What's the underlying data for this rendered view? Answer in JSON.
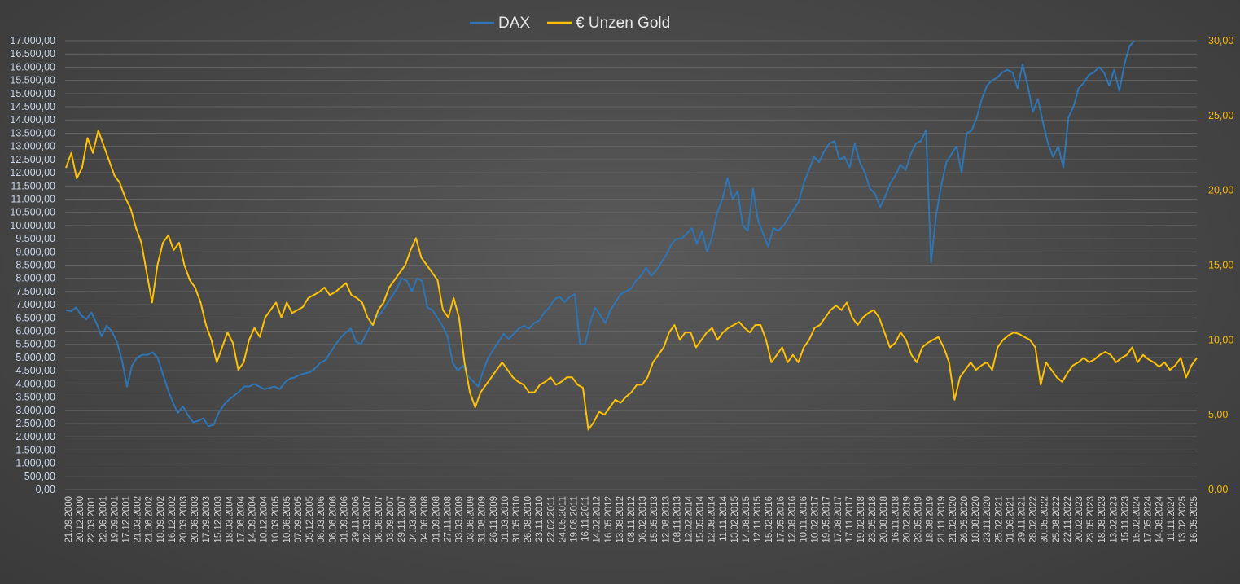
{
  "chart_data": {
    "type": "line",
    "title": "",
    "legend_position": "top-center",
    "grid": true,
    "colors": {
      "dax": "#2e75b6",
      "gold": "#ffc000",
      "grid": "#636363"
    },
    "y_left": {
      "min": 0,
      "max": 17000,
      "step": 500,
      "ticks": [
        "0,00",
        "500,00",
        "1.000,00",
        "1.500,00",
        "2.000,00",
        "2.500,00",
        "3.000,00",
        "3.500,00",
        "4.000,00",
        "4.500,00",
        "5.000,00",
        "5.500,00",
        "6.000,00",
        "6.500,00",
        "7.000,00",
        "7.500,00",
        "8.000,00",
        "8.500,00",
        "9.000,00",
        "9.500,00",
        "10.000,00",
        "10.500,00",
        "11.000,00",
        "11.500,00",
        "12.000,00",
        "12.500,00",
        "13.000,00",
        "13.500,00",
        "14.000,00",
        "14.500,00",
        "15.000,00",
        "15.500,00",
        "16.000,00",
        "16.500,00",
        "17.000,00"
      ]
    },
    "y_right": {
      "min": 0,
      "max": 30,
      "step": 5,
      "ticks": [
        "0,00",
        "5,00",
        "10,00",
        "15,00",
        "20,00",
        "25,00",
        "30,00"
      ]
    },
    "x_labels": [
      "21.09.2000",
      "20.12.2000",
      "22.03.2001",
      "22.06.2001",
      "19.09.2001",
      "17.12.2001",
      "21.03.2002",
      "21.06.2002",
      "18.09.2002",
      "16.12.2002",
      "20.03.2003",
      "20.06.2003",
      "17.09.2003",
      "15.12.2003",
      "18.03.2004",
      "17.06.2004",
      "14.09.2004",
      "10.12.2004",
      "10.03.2005",
      "10.06.2005",
      "07.09.2005",
      "05.12.2005",
      "06.03.2006",
      "06.06.2006",
      "01.09.2006",
      "29.11.2006",
      "02.03.2007",
      "06.06.2007",
      "03.09.2007",
      "29.11.2007",
      "04.03.2008",
      "04.06.2008",
      "01.09.2008",
      "27.11.2008",
      "03.03.2009",
      "03.06.2009",
      "31.08.2009",
      "26.11.2009",
      "01.03.2010",
      "31.05.2010",
      "26.08.2010",
      "23.11.2010",
      "22.02.2011",
      "24.05.2011",
      "19.08.2011",
      "16.11.2011",
      "14.02.2012",
      "16.05.2012",
      "13.08.2012",
      "08.11.2012",
      "06.02.2013",
      "15.05.2013",
      "12.08.2013",
      "08.11.2013",
      "12.02.2014",
      "15.05.2014",
      "12.08.2014",
      "11.11.2014",
      "13.02.2015",
      "14.08.2015",
      "12.11.2015",
      "15.02.2016",
      "17.05.2016",
      "12.08.2016",
      "10.11.2016",
      "10.02.2017",
      "19.05.2017",
      "17.08.2017",
      "17.11.2017",
      "19.02.2018",
      "23.05.2018",
      "20.08.2018",
      "16.11.2018",
      "20.02.2019",
      "23.05.2019",
      "18.08.2019",
      "21.11.2019",
      "21.02.2020",
      "26.05.2020",
      "18.08.2020",
      "23.11.2020",
      "25.02.2021",
      "01.06.2021",
      "29.11.2021",
      "28.02.2022",
      "30.05.2022",
      "25.08.2022",
      "22.11.2022",
      "20.02.2023",
      "23.05.2023",
      "18.08.2023",
      "13.02.2023",
      "15.11.2023",
      "15.02.2024",
      "17.05.2024",
      "14.08.2024",
      "11.11.2024",
      "13.02.2025",
      "16.05.2025"
    ],
    "series": [
      {
        "name": "DAX",
        "axis": "left",
        "values": [
          6800,
          6750,
          6900,
          6600,
          6450,
          6700,
          6300,
          5800,
          6200,
          6000,
          5600,
          4900,
          3900,
          4700,
          5000,
          5100,
          5100,
          5200,
          5000,
          4400,
          3800,
          3300,
          2900,
          3150,
          2800,
          2550,
          2600,
          2700,
          2400,
          2450,
          2900,
          3200,
          3400,
          3550,
          3700,
          3900,
          3900,
          4000,
          3900,
          3800,
          3850,
          3900,
          3800,
          4050,
          4200,
          4250,
          4350,
          4400,
          4450,
          4600,
          4800,
          4900,
          5200,
          5500,
          5750,
          5950,
          6100,
          5600,
          5500,
          5900,
          6250,
          6500,
          6700,
          7000,
          7300,
          7600,
          8000,
          7900,
          7500,
          8000,
          7900,
          6900,
          6800,
          6500,
          6200,
          5800,
          4800,
          4500,
          4700,
          4300,
          4100,
          3900,
          4500,
          5000,
          5300,
          5600,
          5900,
          5700,
          5900,
          6100,
          6200,
          6100,
          6300,
          6400,
          6700,
          6900,
          7200,
          7300,
          7100,
          7300,
          7400,
          5500,
          5500,
          6300,
          6900,
          6600,
          6300,
          6800,
          7100,
          7400,
          7500,
          7600,
          7900,
          8100,
          8400,
          8100,
          8300,
          8600,
          8900,
          9300,
          9500,
          9500,
          9700,
          9900,
          9300,
          9800,
          9000,
          9600,
          10500,
          11000,
          11800,
          11000,
          11300,
          10000,
          9800,
          11400,
          10200,
          9700,
          9200,
          9900,
          9800,
          10000,
          10300,
          10600,
          10900,
          11600,
          12100,
          12600,
          12400,
          12800,
          13100,
          13200,
          12500,
          12600,
          12200,
          13100,
          12400,
          12000,
          11400,
          11200,
          10700,
          11100,
          11600,
          11900,
          12300,
          12100,
          12700,
          13100,
          13200,
          13600,
          8600,
          10400,
          11500,
          12400,
          12700,
          13000,
          12000,
          13500,
          13600,
          14100,
          14800,
          15300,
          15500,
          15600,
          15800,
          15900,
          15800,
          15200,
          16100,
          15300,
          14300,
          14800,
          13900,
          13100,
          12600,
          13000,
          12200,
          14100,
          14500,
          15200,
          15400,
          15700,
          15800,
          16000,
          15800,
          15300,
          15900,
          15100,
          16100,
          16800,
          17000
        ]
      },
      {
        "name": "€ Unzen Gold",
        "axis": "right",
        "values": [
          21.5,
          22.5,
          20.8,
          21.5,
          23.5,
          22.5,
          24.0,
          23.0,
          22.0,
          21.0,
          20.5,
          19.5,
          18.8,
          17.5,
          16.5,
          14.5,
          12.5,
          15.0,
          16.5,
          17.0,
          16.0,
          16.5,
          15.0,
          14.0,
          13.5,
          12.5,
          11.0,
          10.0,
          8.5,
          9.5,
          10.5,
          9.8,
          8.0,
          8.5,
          10.0,
          10.8,
          10.2,
          11.5,
          12.0,
          12.5,
          11.5,
          12.5,
          11.8,
          12.0,
          12.2,
          12.8,
          13.0,
          13.2,
          13.5,
          13.0,
          13.2,
          13.5,
          13.8,
          13.0,
          12.8,
          12.5,
          11.5,
          11.0,
          12.0,
          12.5,
          13.5,
          14.0,
          14.5,
          15.0,
          16.0,
          16.8,
          15.5,
          15.0,
          14.5,
          14.0,
          12.0,
          11.5,
          12.8,
          11.5,
          8.5,
          6.5,
          5.5,
          6.5,
          7.0,
          7.5,
          8.0,
          8.5,
          8.0,
          7.5,
          7.2,
          7.0,
          6.5,
          6.5,
          7.0,
          7.2,
          7.5,
          7.0,
          7.2,
          7.5,
          7.5,
          7.0,
          6.8,
          4.0,
          4.5,
          5.2,
          5.0,
          5.5,
          6.0,
          5.8,
          6.2,
          6.5,
          7.0,
          7.0,
          7.5,
          8.5,
          9.0,
          9.5,
          10.5,
          11.0,
          10.0,
          10.5,
          10.5,
          9.5,
          10.0,
          10.5,
          10.8,
          10.0,
          10.5,
          10.8,
          11.0,
          11.2,
          10.8,
          10.5,
          11.0,
          11.0,
          10.0,
          8.5,
          9.0,
          9.5,
          8.5,
          9.0,
          8.5,
          9.5,
          10.0,
          10.8,
          11.0,
          11.5,
          12.0,
          12.3,
          12.0,
          12.5,
          11.5,
          11.0,
          11.5,
          11.8,
          12.0,
          11.5,
          10.5,
          9.5,
          9.8,
          10.5,
          10.0,
          9.0,
          8.5,
          9.5,
          9.8,
          10.0,
          10.2,
          9.5,
          8.5,
          6.0,
          7.5,
          8.0,
          8.5,
          8.0,
          8.3,
          8.5,
          8.0,
          9.5,
          10.0,
          10.3,
          10.5,
          10.4,
          10.2,
          10.0,
          9.5,
          7.0,
          8.5,
          8.0,
          7.5,
          7.2,
          7.8,
          8.3,
          8.5,
          8.8,
          8.5,
          8.7,
          9.0,
          9.2,
          9.0,
          8.5,
          8.8,
          9.0,
          9.5,
          8.5,
          9.0,
          8.7,
          8.5,
          8.2,
          8.5,
          8.0,
          8.3,
          8.8,
          7.5,
          8.3,
          8.8
        ]
      }
    ]
  }
}
